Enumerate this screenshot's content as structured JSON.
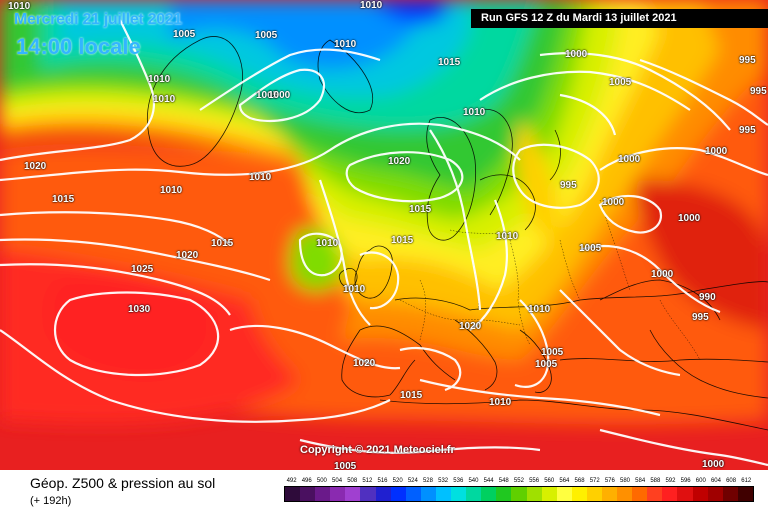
{
  "header": {
    "date": "Mercredi 21 juillet 2021",
    "time": "14:00 locale",
    "run": "Run GFS 12 Z du Mardi 13 juillet 2021"
  },
  "copyright": "Copyright © 2021 Meteociel.fr",
  "footer": {
    "title": "Géop. Z500 & pression au sol",
    "subtitle": "(+ 192h)"
  },
  "legend": {
    "ticks": [
      "492",
      "496",
      "500",
      "504",
      "508",
      "512",
      "516",
      "520",
      "524",
      "528",
      "532",
      "536",
      "540",
      "544",
      "548",
      "552",
      "556",
      "560",
      "564",
      "568",
      "572",
      "576",
      "580",
      "584",
      "588",
      "592",
      "596",
      "600",
      "604",
      "608",
      "612"
    ],
    "colors": [
      "#2e0b3a",
      "#4a1060",
      "#6a1a8a",
      "#8a2ab0",
      "#a040d0",
      "#5030c0",
      "#2020d0",
      "#0030ff",
      "#0060ff",
      "#0090ff",
      "#00c0ff",
      "#00e0e0",
      "#00d8a0",
      "#00d060",
      "#20c820",
      "#60d000",
      "#a0e000",
      "#d8f000",
      "#ffff40",
      "#fff000",
      "#ffd000",
      "#ffb000",
      "#ff9000",
      "#ff6a00",
      "#ff4020",
      "#ff2020",
      "#e01010",
      "#c00000",
      "#a00000",
      "#700000",
      "#400000"
    ]
  },
  "isobars": [
    {
      "id": "iso-1010-nw1",
      "text": "1010"
    },
    {
      "id": "iso-1005-n1",
      "text": "1005"
    },
    {
      "id": "iso-1005-n2",
      "text": "1005"
    },
    {
      "id": "iso-1010-n3",
      "text": "1010"
    },
    {
      "id": "iso-1010-n4",
      "text": "1010"
    },
    {
      "id": "iso-1010-n5",
      "text": "1010"
    },
    {
      "id": "iso-1010-n6",
      "text": "1010"
    },
    {
      "id": "iso-1005-n7",
      "text": "1005"
    },
    {
      "id": "iso-1000-n8",
      "text": "1000"
    },
    {
      "id": "iso-1015-n9",
      "text": "1015"
    },
    {
      "id": "iso-1000-ne1",
      "text": "1000"
    },
    {
      "id": "iso-1005-ne2",
      "text": "1005"
    },
    {
      "id": "iso-995-ne3",
      "text": "995"
    },
    {
      "id": "iso-995-ne4",
      "text": "995"
    },
    {
      "id": "iso-995-ne5",
      "text": "995"
    },
    {
      "id": "iso-1000-e1",
      "text": "1000"
    },
    {
      "id": "iso-1000-e2",
      "text": "1000"
    },
    {
      "id": "iso-1000-e3",
      "text": "1000"
    },
    {
      "id": "iso-1000-e4",
      "text": "1000"
    },
    {
      "id": "iso-995-c1",
      "text": "995"
    },
    {
      "id": "iso-1020-c2",
      "text": "1020"
    },
    {
      "id": "iso-1010-c3",
      "text": "1010"
    },
    {
      "id": "iso-1010-c4",
      "text": "1010"
    },
    {
      "id": "iso-1020-w1",
      "text": "1020"
    },
    {
      "id": "iso-1015-w2",
      "text": "1015"
    },
    {
      "id": "iso-1010-w3",
      "text": "1010"
    },
    {
      "id": "iso-1015-w4",
      "text": "1015"
    },
    {
      "id": "iso-1020-w5",
      "text": "1020"
    },
    {
      "id": "iso-1025-w6",
      "text": "1025"
    },
    {
      "id": "iso-1030-w7",
      "text": "1030"
    },
    {
      "id": "iso-1015-c5",
      "text": "1015"
    },
    {
      "id": "iso-1015-c6",
      "text": "1015"
    },
    {
      "id": "iso-1010-c7",
      "text": "1010"
    },
    {
      "id": "iso-1010-c8",
      "text": "1010"
    },
    {
      "id": "iso-1005-c9",
      "text": "1005"
    },
    {
      "id": "iso-1000-e5",
      "text": "1000"
    },
    {
      "id": "iso-990-e6",
      "text": "990"
    },
    {
      "id": "iso-995-e7",
      "text": "995"
    },
    {
      "id": "iso-1010-s1",
      "text": "1010"
    },
    {
      "id": "iso-1010-s2",
      "text": "1010"
    },
    {
      "id": "iso-1005-s3",
      "text": "1005"
    },
    {
      "id": "iso-1005-s4",
      "text": "1005"
    },
    {
      "id": "iso-1020-s5",
      "text": "1020"
    },
    {
      "id": "iso-1015-s6",
      "text": "1015"
    },
    {
      "id": "iso-1010-s7",
      "text": "1010"
    },
    {
      "id": "iso-1005-s8",
      "text": "1005"
    },
    {
      "id": "iso-1000-s9",
      "text": "1000"
    }
  ]
}
